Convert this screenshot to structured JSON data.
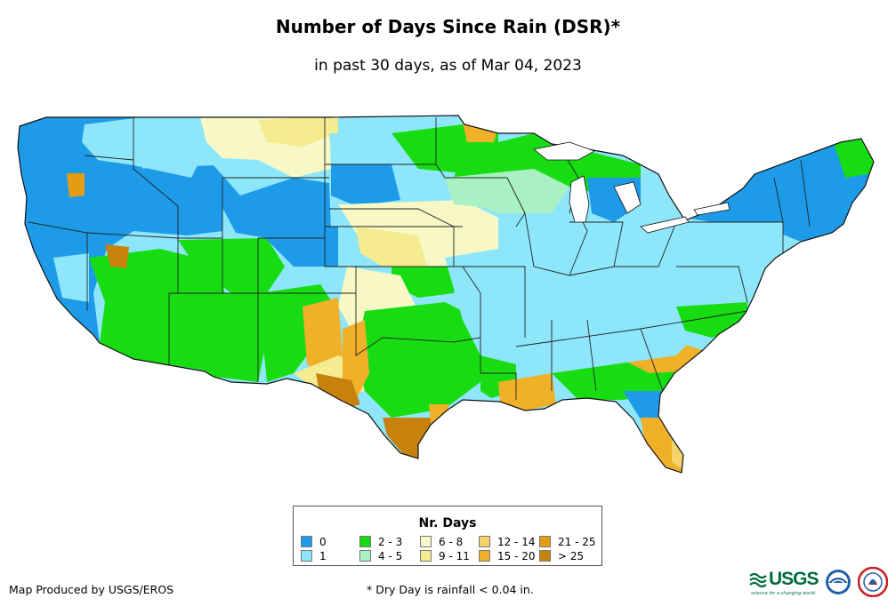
{
  "title": "Number of Days Since Rain (DSR)*",
  "subtitle": "in past 30 days, as of Mar 04, 2023",
  "legend": {
    "title": "Nr. Days",
    "items": [
      {
        "label": "0",
        "color": "#1e9be8"
      },
      {
        "label": "1",
        "color": "#8ee6fb"
      },
      {
        "label": "2 - 3",
        "color": "#18dc12"
      },
      {
        "label": "4 - 5",
        "color": "#a9f0c3"
      },
      {
        "label": "6 - 8",
        "color": "#f8f8c6"
      },
      {
        "label": "9 - 11",
        "color": "#f5eb8f"
      },
      {
        "label": "12 - 14",
        "color": "#f6d36a"
      },
      {
        "label": "15 - 20",
        "color": "#f0b028"
      },
      {
        "label": "21 - 25",
        "color": "#e59b12"
      },
      {
        "label": "> 25",
        "color": "#c7820d"
      }
    ]
  },
  "credit": "Map Produced by USGS/EROS",
  "footnote": "* Dry Day is rainfall < 0.04 in.",
  "logos": {
    "usgs": "USGS",
    "usgs_tagline": "science for a changing world",
    "noaa": "NOAA",
    "nws": "National Weather Service"
  }
}
